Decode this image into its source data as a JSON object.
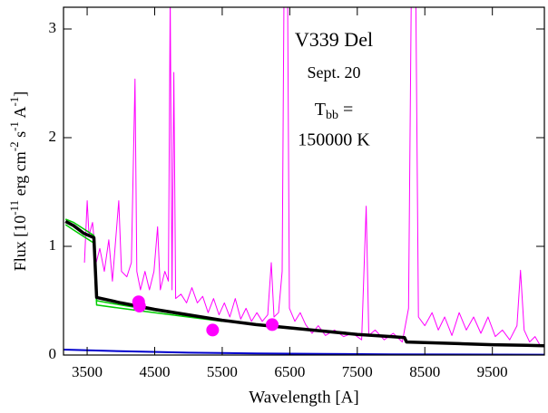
{
  "chart_data": {
    "type": "line",
    "annotations": [
      "V339 Del",
      "Sept. 20",
      [
        "T",
        "bb",
        " ="
      ],
      "150000 K"
    ],
    "x_label": "Wavelength [A]",
    "y_label": [
      "Flux [10",
      "-11",
      " erg cm",
      "-2",
      " s",
      "-1",
      " A",
      "-1",
      "]"
    ],
    "xlim": [
      3150,
      10270
    ],
    "ylim": [
      0,
      3.2
    ],
    "xticks": [
      3500,
      4500,
      5500,
      6500,
      7500,
      8500,
      9500
    ],
    "yticks": [
      0,
      1,
      2,
      3
    ],
    "series": [
      {
        "color": "#ff00ff",
        "width": 1,
        "x": [
          3460,
          3500,
          3527,
          3580,
          3634,
          3687,
          3754,
          3821,
          3874,
          3968,
          4008,
          4088,
          4155,
          4209,
          4235,
          4289,
          4356,
          4422,
          4489,
          4543,
          4583,
          4650,
          4703,
          4730,
          4757,
          4783,
          4810,
          4890,
          4971,
          5051,
          5131,
          5211,
          5291,
          5372,
          5452,
          5532,
          5612,
          5693,
          5773,
          5853,
          5933,
          6013,
          6094,
          6174,
          6227,
          6267,
          6334,
          6388,
          6414,
          6468,
          6495,
          6575,
          6655,
          6735,
          6829,
          6922,
          7029,
          7163,
          7297,
          7430,
          7564,
          7631,
          7671,
          7765,
          7898,
          8032,
          8166,
          8259,
          8299,
          8366,
          8406,
          8500,
          8607,
          8700,
          8794,
          8901,
          9008,
          9115,
          9222,
          9329,
          9436,
          9543,
          9650,
          9757,
          9864,
          9917,
          9971,
          10051,
          10131,
          10198
        ],
        "values": [
          0.85,
          1.42,
          1.1,
          1.22,
          0.85,
          0.98,
          0.77,
          1.06,
          0.68,
          1.42,
          0.77,
          0.72,
          0.85,
          2.54,
          0.77,
          0.6,
          0.77,
          0.6,
          0.77,
          1.18,
          0.6,
          0.77,
          0.68,
          3.3,
          0.6,
          2.6,
          0.52,
          0.56,
          0.48,
          0.62,
          0.48,
          0.54,
          0.39,
          0.52,
          0.37,
          0.48,
          0.35,
          0.52,
          0.33,
          0.43,
          0.31,
          0.39,
          0.31,
          0.37,
          0.85,
          0.35,
          0.39,
          0.77,
          3.3,
          3.3,
          0.43,
          0.31,
          0.39,
          0.28,
          0.2,
          0.27,
          0.18,
          0.23,
          0.17,
          0.2,
          0.14,
          1.37,
          0.18,
          0.23,
          0.14,
          0.2,
          0.12,
          0.43,
          3.3,
          3.3,
          0.35,
          0.27,
          0.39,
          0.23,
          0.35,
          0.18,
          0.39,
          0.23,
          0.35,
          0.2,
          0.35,
          0.17,
          0.23,
          0.14,
          0.27,
          0.78,
          0.23,
          0.12,
          0.17,
          0.1
        ]
      },
      {
        "color": "#00cc00",
        "width": 1.5,
        "x": [
          3180,
          3300,
          3600,
          3640,
          4000,
          4500,
          5000,
          5500
        ],
        "values": [
          1.25,
          1.22,
          1.1,
          0.5,
          0.46,
          0.41,
          0.36,
          0.32
        ]
      },
      {
        "color": "#00cc00",
        "width": 1.5,
        "x": [
          3180,
          3300,
          3600,
          3640,
          4000,
          4500,
          5000,
          5500
        ],
        "values": [
          1.2,
          1.15,
          1.03,
          0.46,
          0.43,
          0.39,
          0.35,
          0.31
        ]
      },
      {
        "color": "#000000",
        "width": 3.5,
        "x": [
          3180,
          3300,
          3450,
          3600,
          3640,
          4000,
          4500,
          5000,
          5500,
          6000,
          6500,
          7000,
          7500,
          8000,
          8200,
          8230,
          8500,
          9000,
          9500,
          10000,
          10270
        ],
        "values": [
          1.23,
          1.19,
          1.12,
          1.08,
          0.53,
          0.48,
          0.42,
          0.37,
          0.32,
          0.28,
          0.25,
          0.22,
          0.19,
          0.17,
          0.16,
          0.12,
          0.115,
          0.105,
          0.095,
          0.09,
          0.085
        ]
      },
      {
        "color": "#0000cc",
        "width": 2,
        "x": [
          3150,
          4000,
          5000,
          6000,
          7000,
          8000,
          9000,
          10270
        ],
        "values": [
          0.05,
          0.035,
          0.022,
          0.015,
          0.01,
          0.007,
          0.005,
          0.003
        ]
      },
      {
        "color": "#ff00ff",
        "mode": "markers",
        "x": [
          4262,
          4275,
          5358,
          6240
        ],
        "values": [
          0.49,
          0.45,
          0.23,
          0.28
        ]
      }
    ]
  }
}
